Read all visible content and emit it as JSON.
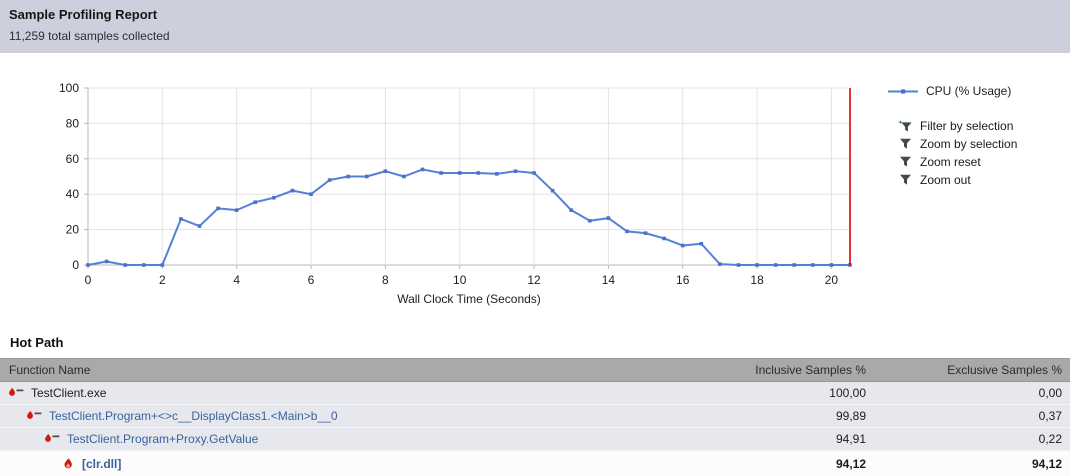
{
  "header": {
    "title": "Sample Profiling Report",
    "subtitle": "11,259 total samples collected"
  },
  "chart": {
    "legend_label": "CPU (% Usage)",
    "actions": [
      {
        "label": "Filter by selection"
      },
      {
        "label": "Zoom by selection"
      },
      {
        "label": "Zoom reset"
      },
      {
        "label": "Zoom out"
      }
    ]
  },
  "chart_data": {
    "type": "line",
    "title": "",
    "xlabel": "Wall Clock Time (Seconds)",
    "ylabel": "",
    "xlim": [
      0,
      20.5
    ],
    "ylim": [
      0,
      100
    ],
    "x_ticks": [
      0,
      2,
      4,
      6,
      8,
      10,
      12,
      14,
      16,
      18,
      20
    ],
    "y_ticks": [
      0,
      20,
      40,
      60,
      80,
      100
    ],
    "grid": true,
    "legend_position": "right",
    "time_marker_x": 20.5,
    "series": [
      {
        "name": "CPU (% Usage)",
        "x": [
          0,
          0.5,
          1,
          1.5,
          2,
          2.5,
          3,
          3.5,
          4,
          4.5,
          5,
          5.5,
          6,
          6.5,
          7,
          7.5,
          8,
          8.5,
          9,
          9.5,
          10,
          10.5,
          11,
          11.5,
          12,
          12.5,
          13,
          13.5,
          14,
          14.5,
          15,
          15.5,
          16,
          16.5,
          17,
          17.5,
          18,
          18.5,
          19,
          19.5,
          20,
          20.5
        ],
        "y": [
          0,
          2,
          0,
          0,
          0,
          26,
          22,
          32,
          31,
          35.5,
          38,
          42,
          40,
          48,
          50,
          50,
          53,
          50,
          54,
          52,
          52,
          52,
          51.5,
          53,
          52,
          42,
          31,
          25,
          26.5,
          19,
          18,
          15,
          11,
          12,
          0.5,
          0,
          0,
          0,
          0,
          0,
          0,
          0
        ]
      }
    ]
  },
  "hot_path": {
    "title": "Hot Path",
    "columns": [
      "Function Name",
      "Inclusive Samples %",
      "Exclusive Samples %"
    ],
    "rows": [
      {
        "function": "TestClient.exe",
        "inclusive": "100,00",
        "exclusive": "0,00",
        "indent": 0,
        "icon": "hot-path-branch-icon",
        "style": "plain"
      },
      {
        "function": "TestClient.Program+<>c__DisplayClass1.<Main>b__0",
        "inclusive": "99,89",
        "exclusive": "0,37",
        "indent": 1,
        "icon": "hot-path-branch-icon",
        "style": "link"
      },
      {
        "function": "TestClient.Program+Proxy.GetValue",
        "inclusive": "94,91",
        "exclusive": "0,22",
        "indent": 2,
        "icon": "hot-path-branch-icon",
        "style": "link"
      },
      {
        "function": "[clr.dll]",
        "inclusive": "94,12",
        "exclusive": "94,12",
        "indent": 3,
        "icon": "flame-icon",
        "style": "hot"
      }
    ]
  },
  "colors": {
    "band-bg": "#cdd0dc",
    "line-blue": "#567fd6",
    "marker-blue": "#4a72c8",
    "time-marker-red": "#dd0000",
    "grid": "#e3e3e3",
    "axis": "#b9b9b9",
    "link-blue": "#36639e",
    "flame-red": "#cf1b0b",
    "table-header-bg": "#a9a9a9",
    "row-bg": "#e6e8ee",
    "hot-row-bg": "#fcfcfd"
  }
}
